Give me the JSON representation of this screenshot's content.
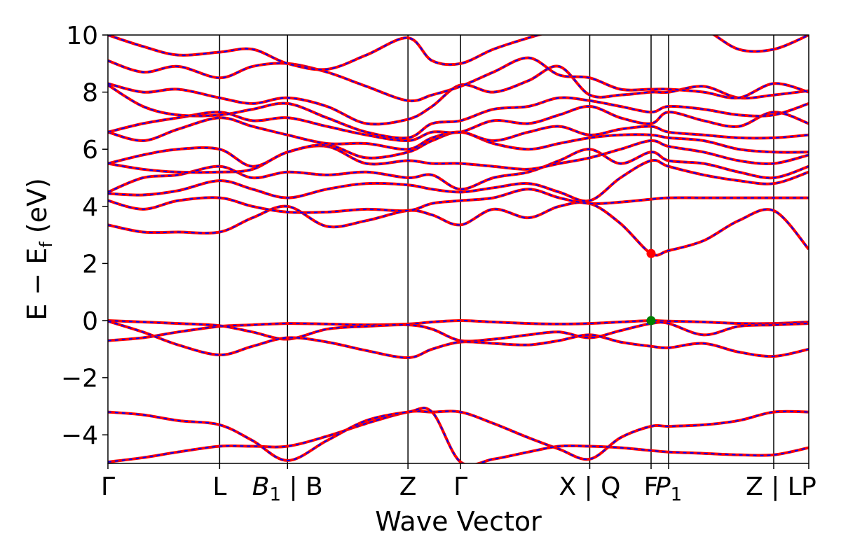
{
  "chart_data": {
    "type": "line",
    "title": "",
    "xlabel": "Wave Vector",
    "ylabel": "E − E_f (eV)",
    "ylabel_main": "E − E",
    "ylabel_sub": "f",
    "ylabel_unit": " (eV)",
    "ylim": [
      -5,
      10
    ],
    "yticks": [
      -4,
      -2,
      0,
      2,
      4,
      6,
      8,
      10
    ],
    "ytick_labels": [
      "−4",
      "−2",
      "0",
      "2",
      "4",
      "6",
      "8",
      "10"
    ],
    "xlim": [
      0,
      16.0
    ],
    "high_symmetry_points": [
      {
        "x": 0.0,
        "label": "Γ",
        "sub": ""
      },
      {
        "x": 2.55,
        "label": "L",
        "sub": ""
      },
      {
        "x": 4.1,
        "label": "B",
        "sub": "1",
        "italic": true,
        "suffix": " | B"
      },
      {
        "x": 6.85,
        "label": "Z",
        "sub": ""
      },
      {
        "x": 8.05,
        "label": "Γ",
        "sub": ""
      },
      {
        "x": 11.0,
        "label": "X | Q",
        "sub": ""
      },
      {
        "x": 12.4,
        "label": "F",
        "sub": ""
      },
      {
        "x": 12.8,
        "label": "P",
        "sub": "1",
        "italic": true
      },
      {
        "x": 15.2,
        "label": "Z | L",
        "sub": ""
      },
      {
        "x": 16.0,
        "label": "P",
        "sub": ""
      }
    ],
    "series_style": {
      "primary_color": "#ff0000",
      "overlay_color": "#0000ff",
      "overlay_dash": "dashed"
    },
    "markers": [
      {
        "name": "CBM",
        "x": 12.4,
        "y": 2.35,
        "color": "#ff0000"
      },
      {
        "name": "VBM",
        "x": 12.4,
        "y": 0.0,
        "color": "#008000"
      }
    ],
    "bands": [
      {
        "x": [
          0,
          0.8,
          1.6,
          2.55,
          3.3,
          4.1,
          5.0,
          5.9,
          6.85,
          7.4,
          8.05,
          8.8,
          9.6,
          10.3,
          11.0,
          11.7,
          12.4,
          12.8,
          13.6,
          14.4,
          15.2,
          16.0
        ],
        "y": [
          -4.95,
          -4.8,
          -4.6,
          -4.4,
          -4.4,
          -4.4,
          -4.05,
          -3.6,
          -3.2,
          -3.2,
          -3.2,
          -3.6,
          -4.1,
          -4.5,
          -4.85,
          -4.1,
          -3.7,
          -3.7,
          -3.65,
          -3.5,
          -3.2,
          -3.2
        ]
      },
      {
        "x": [
          0,
          0.8,
          1.6,
          2.55,
          3.3,
          4.1,
          5.0,
          5.9,
          6.85,
          7.4,
          8.05,
          8.8,
          9.6,
          10.3,
          11.0,
          11.7,
          12.4,
          12.8,
          13.6,
          14.4,
          15.2,
          16.0
        ],
        "y": [
          -3.2,
          -3.3,
          -3.5,
          -3.65,
          -4.2,
          -4.9,
          -4.2,
          -3.5,
          -3.2,
          -3.2,
          -4.95,
          -4.85,
          -4.6,
          -4.4,
          -4.4,
          -4.45,
          -4.55,
          -4.6,
          -4.65,
          -4.7,
          -4.7,
          -4.45
        ]
      },
      {
        "x": [
          0,
          0.8,
          1.6,
          2.55,
          3.3,
          4.1,
          5.0,
          5.9,
          6.85,
          7.4,
          8.05,
          8.8,
          9.6,
          10.3,
          11.0,
          11.7,
          12.4,
          12.8,
          13.6,
          14.4,
          15.2,
          16.0
        ],
        "y": [
          -0.7,
          -0.6,
          -0.4,
          -0.2,
          -0.15,
          -0.1,
          -0.12,
          -0.15,
          -0.12,
          -0.05,
          0.0,
          -0.05,
          -0.1,
          -0.12,
          -0.1,
          -0.05,
          0.0,
          -0.02,
          -0.05,
          -0.1,
          -0.1,
          -0.05
        ]
      },
      {
        "x": [
          0,
          0.8,
          1.6,
          2.55,
          3.3,
          4.1,
          5.0,
          5.9,
          6.85,
          7.4,
          8.05,
          8.8,
          9.6,
          10.3,
          11.0,
          11.7,
          12.4,
          12.8,
          13.6,
          14.4,
          15.2,
          16.0
        ],
        "y": [
          0.0,
          -0.05,
          -0.1,
          -0.18,
          -0.4,
          -0.65,
          -0.3,
          -0.2,
          -0.15,
          -0.3,
          -0.7,
          -0.65,
          -0.5,
          -0.4,
          -0.6,
          -0.35,
          -0.1,
          -0.1,
          -0.5,
          -0.2,
          -0.15,
          -0.1
        ]
      },
      {
        "x": [
          0,
          0.8,
          1.6,
          2.55,
          3.3,
          4.1,
          5.0,
          5.9,
          6.85,
          7.4,
          8.05,
          8.8,
          9.6,
          10.3,
          11.0,
          11.7,
          12.4,
          12.8,
          13.6,
          14.4,
          15.2,
          16.0
        ],
        "y": [
          -0.02,
          -0.4,
          -0.85,
          -1.2,
          -0.9,
          -0.6,
          -0.75,
          -1.05,
          -1.3,
          -1.0,
          -0.75,
          -0.8,
          -0.85,
          -0.7,
          -0.5,
          -0.75,
          -0.9,
          -0.95,
          -0.8,
          -1.1,
          -1.25,
          -1.0
        ]
      },
      {
        "x": [
          0,
          0.8,
          1.6,
          2.55,
          3.3,
          4.1,
          5.0,
          5.9,
          6.85,
          7.4,
          8.05,
          8.8,
          9.6,
          10.3,
          11.0,
          11.7,
          12.4,
          12.8,
          13.6,
          14.4,
          15.2,
          16.0
        ],
        "y": [
          3.35,
          3.1,
          3.1,
          3.1,
          3.6,
          4.0,
          3.3,
          3.5,
          3.85,
          3.7,
          3.35,
          3.9,
          3.6,
          4.0,
          4.1,
          3.4,
          2.35,
          2.45,
          2.8,
          3.5,
          3.85,
          2.5
        ]
      },
      {
        "x": [
          0,
          0.8,
          1.6,
          2.55,
          3.3,
          4.1,
          5.0,
          5.9,
          6.85,
          7.4,
          8.05,
          8.8,
          9.6,
          10.3,
          11.0,
          11.7,
          12.4,
          12.8,
          13.6,
          14.4,
          15.2,
          16.0
        ],
        "y": [
          4.2,
          3.9,
          4.2,
          4.3,
          4.0,
          3.8,
          3.8,
          3.9,
          3.85,
          4.1,
          4.2,
          4.3,
          4.6,
          4.3,
          4.1,
          4.15,
          4.25,
          4.3,
          4.3,
          4.3,
          4.3,
          4.3
        ]
      },
      {
        "x": [
          0,
          0.8,
          1.6,
          2.55,
          3.3,
          4.1,
          5.0,
          5.9,
          6.85,
          7.4,
          8.05,
          8.8,
          9.6,
          10.3,
          11.0,
          11.7,
          12.4,
          12.8,
          13.6,
          14.4,
          15.2,
          16.0
        ],
        "y": [
          4.45,
          4.4,
          4.55,
          4.9,
          4.6,
          4.3,
          4.6,
          4.8,
          4.75,
          4.6,
          4.5,
          4.65,
          4.8,
          4.5,
          4.2,
          5.0,
          5.6,
          5.4,
          5.1,
          4.9,
          4.8,
          5.2
        ]
      },
      {
        "x": [
          0,
          0.8,
          1.6,
          2.55,
          3.3,
          4.1,
          5.0,
          5.9,
          6.85,
          7.4,
          8.05,
          8.8,
          9.6,
          10.3,
          11.0,
          11.7,
          12.4,
          12.8,
          13.6,
          14.4,
          15.2,
          16.0
        ],
        "y": [
          4.5,
          5.0,
          5.1,
          5.4,
          5.0,
          5.2,
          5.1,
          5.2,
          5.0,
          5.1,
          4.6,
          5.0,
          5.2,
          5.6,
          6.0,
          5.5,
          5.9,
          5.6,
          5.5,
          5.2,
          5.0,
          5.4
        ]
      },
      {
        "x": [
          0,
          0.8,
          1.6,
          2.55,
          3.3,
          4.1,
          5.0,
          5.9,
          6.85,
          7.4,
          8.05,
          8.8,
          9.6,
          10.3,
          11.0,
          11.7,
          12.4,
          12.8,
          13.6,
          14.4,
          15.2,
          16.0
        ],
        "y": [
          5.5,
          5.3,
          5.2,
          5.2,
          5.3,
          5.9,
          6.1,
          5.5,
          5.6,
          5.5,
          5.5,
          5.4,
          5.3,
          5.5,
          5.7,
          6.0,
          6.3,
          6.1,
          5.9,
          5.6,
          5.5,
          5.8
        ]
      },
      {
        "x": [
          0,
          0.8,
          1.6,
          2.55,
          3.3,
          4.1,
          5.0,
          5.9,
          6.85,
          7.4,
          8.05,
          8.8,
          9.6,
          10.3,
          11.0,
          11.7,
          12.4,
          12.8,
          13.6,
          14.4,
          15.2,
          16.0
        ],
        "y": [
          5.5,
          5.8,
          6.0,
          6.0,
          5.4,
          5.9,
          6.15,
          5.7,
          5.9,
          6.3,
          6.6,
          6.2,
          6.0,
          6.2,
          6.4,
          6.5,
          6.5,
          6.4,
          6.3,
          6.0,
          5.9,
          5.9
        ]
      },
      {
        "x": [
          0,
          0.8,
          1.6,
          2.55,
          3.3,
          4.1,
          5.0,
          5.9,
          6.85,
          7.4,
          8.05,
          8.8,
          9.6,
          10.3,
          11.0,
          11.7,
          12.4,
          12.8,
          13.6,
          14.4,
          15.2,
          16.0
        ],
        "y": [
          6.6,
          6.3,
          6.7,
          7.1,
          6.8,
          6.5,
          6.2,
          6.2,
          6.0,
          6.4,
          6.6,
          6.3,
          6.6,
          6.8,
          6.5,
          6.7,
          6.8,
          6.6,
          6.5,
          6.4,
          6.4,
          6.5
        ]
      },
      {
        "x": [
          0,
          0.8,
          1.6,
          2.55,
          3.3,
          4.1,
          5.0,
          5.9,
          6.85,
          7.4,
          8.05,
          8.8,
          9.6,
          10.3,
          11.0,
          11.7,
          12.4,
          12.8,
          13.6,
          14.4,
          15.2,
          16.0
        ],
        "y": [
          6.6,
          6.9,
          7.1,
          7.3,
          7.0,
          7.1,
          6.8,
          6.5,
          6.3,
          6.6,
          6.6,
          7.0,
          6.9,
          7.2,
          7.5,
          7.1,
          6.9,
          7.3,
          7.0,
          6.8,
          7.3,
          6.9
        ]
      },
      {
        "x": [
          0,
          0.8,
          1.6,
          2.55,
          3.3,
          4.1,
          5.0,
          5.9,
          6.85,
          7.4,
          8.05,
          8.8,
          9.6,
          10.3,
          11.0,
          11.7,
          12.4,
          12.8,
          13.6,
          14.4,
          15.2,
          16.0
        ],
        "y": [
          8.25,
          7.5,
          7.2,
          7.2,
          7.4,
          7.6,
          7.1,
          6.6,
          6.4,
          6.9,
          7.0,
          7.4,
          7.5,
          7.8,
          7.7,
          7.5,
          7.3,
          7.5,
          7.4,
          7.2,
          7.2,
          7.6
        ]
      },
      {
        "x": [
          0,
          0.8,
          1.6,
          2.55,
          3.3,
          4.1,
          5.0,
          5.9,
          6.85,
          7.4,
          8.05,
          8.8,
          9.6,
          10.3,
          11.0,
          11.7,
          12.4,
          12.8,
          13.6,
          14.4,
          15.2,
          16.0
        ],
        "y": [
          8.3,
          8.0,
          8.1,
          7.8,
          7.6,
          7.8,
          7.5,
          6.9,
          7.05,
          7.5,
          8.25,
          8.0,
          8.4,
          8.9,
          7.9,
          7.9,
          8.0,
          8.0,
          8.2,
          7.8,
          7.9,
          8.05
        ]
      },
      {
        "x": [
          0,
          0.8,
          1.6,
          2.55,
          3.3,
          4.1,
          5.0,
          5.9,
          6.85,
          7.4,
          8.05,
          8.8,
          9.6,
          10.3,
          11.0,
          11.7,
          12.4,
          12.8,
          13.6,
          14.4,
          15.2,
          16.0
        ],
        "y": [
          9.1,
          8.7,
          8.9,
          8.5,
          8.9,
          9.0,
          8.7,
          8.2,
          7.7,
          7.9,
          8.2,
          8.7,
          9.2,
          8.6,
          8.5,
          8.1,
          8.1,
          8.1,
          8.0,
          7.8,
          8.3,
          8.0
        ]
      },
      {
        "x": [
          0,
          0.8,
          1.6,
          2.55,
          3.3,
          4.1,
          5.0,
          5.9,
          6.85,
          7.4,
          8.05,
          8.8,
          9.6,
          10.3,
          11.0,
          11.7,
          12.4,
          12.8,
          13.6,
          14.4,
          15.2,
          16.0
        ],
        "y": [
          10.0,
          9.6,
          9.3,
          9.4,
          9.5,
          9.0,
          8.8,
          9.3,
          9.9,
          9.1,
          9.0,
          9.5,
          9.9,
          10.2,
          10.5,
          10.3,
          10.4,
          10.4,
          10.2,
          9.5,
          9.5,
          10.0
        ]
      }
    ]
  }
}
